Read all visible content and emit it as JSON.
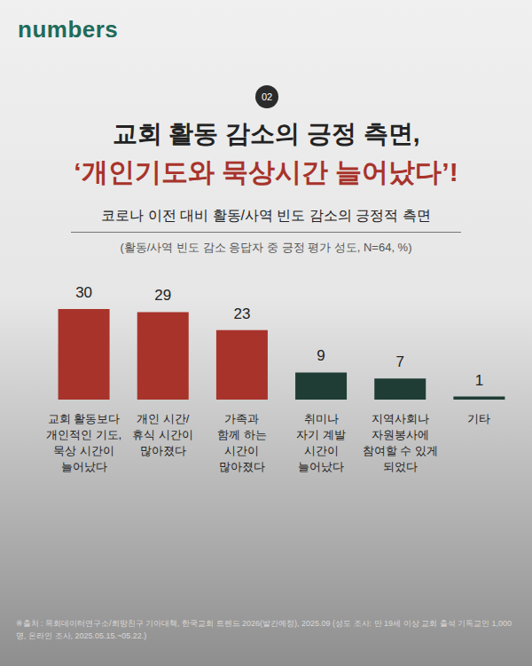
{
  "brand": "numbers",
  "badge": "02",
  "title_lines": [
    "교회 활동 감소의 긍정 측면,",
    "‘개인기도와 묵상시간 늘어났다’!"
  ],
  "source": "※출처 : 목회데이터연구소/희망친구 기아대책, 한국교회 트렌드 2026(발간예정), 2025.09 (성도 조사: 만 19세 이상 교회 출석 기독교인 1,000명, 온라인 조사, 2025.05.15.~05.22.)",
  "chart_data": {
    "type": "bar",
    "title": "코로나 이전 대비 활동/사역 빈도 감소의 긍정적 측면",
    "subtitle": "(활동/사역 빈도 감소 응답자 중 긍정 평가 성도, N=64, %)",
    "categories": [
      "교회 활동보다\n개인적인 기도,\n묵상 시간이\n늘어났다",
      "개인 시간/\n휴식 시간이\n많아졌다",
      "가족과\n함께 하는\n시간이\n많아졌다",
      "취미나\n자기 계발\n시간이\n늘어났다",
      "지역사회나\n자원봉사에\n참여할 수 있게\n되었다",
      "기타"
    ],
    "values": [
      30,
      29,
      23,
      9,
      7,
      1
    ],
    "colors": [
      "#a8332b",
      "#a8332b",
      "#a8332b",
      "#1f3d35",
      "#1f3d35",
      "#1f3d35"
    ],
    "ylim": [
      0,
      30
    ],
    "data_labels": true,
    "tick_labels": "x",
    "grid": false
  }
}
